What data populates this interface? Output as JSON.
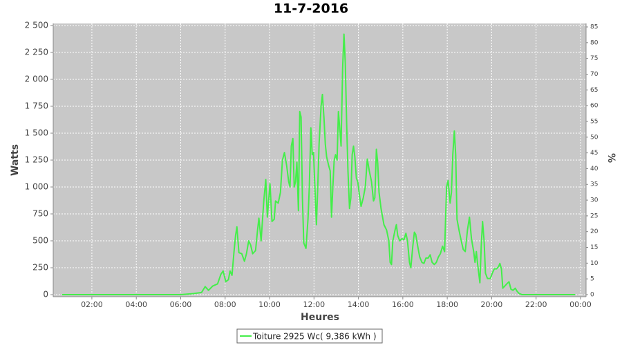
{
  "chart_data": {
    "type": "line",
    "title": "11-7-2016",
    "x_label": "Heures",
    "y_label": "Watts",
    "y2_label": "%",
    "grid": true,
    "legend_position": "bottom",
    "xlim": [
      0.26,
      24.25
    ],
    "xticks": [
      {
        "value": 2,
        "label": "02:00"
      },
      {
        "value": 4,
        "label": "04:00"
      },
      {
        "value": 6,
        "label": "06:00"
      },
      {
        "value": 8,
        "label": "08:00"
      },
      {
        "value": 10,
        "label": "10:00"
      },
      {
        "value": 12,
        "label": "12:00"
      },
      {
        "value": 14,
        "label": "14:00"
      },
      {
        "value": 16,
        "label": "16:00"
      },
      {
        "value": 18,
        "label": "18:00"
      },
      {
        "value": 20,
        "label": "20:00"
      },
      {
        "value": 22,
        "label": "22:00"
      },
      {
        "value": 24,
        "label": "00:00"
      }
    ],
    "ylim": [
      -19,
      2519
    ],
    "yticks": [
      0,
      250,
      500,
      750,
      {
        "value": 1000,
        "label": "1 000"
      },
      {
        "value": 1250,
        "label": "1 250"
      },
      {
        "value": 1500,
        "label": "1 500"
      },
      {
        "value": 1750,
        "label": "1 750"
      },
      {
        "value": 2000,
        "label": "2 000"
      },
      {
        "value": 2250,
        "label": "2 250"
      },
      {
        "value": 2500,
        "label": "2 500"
      }
    ],
    "y2lim": [
      -0.66,
      86.1
    ],
    "y2ticks": [
      0,
      5,
      10,
      15,
      20,
      25,
      30,
      35,
      40,
      45,
      50,
      55,
      60,
      65,
      70,
      75,
      80,
      85
    ],
    "x": [
      0.66,
      6.01,
      6.57,
      6.94,
      7.1,
      7.25,
      7.44,
      7.66,
      7.81,
      7.91,
      8.03,
      8.15,
      8.22,
      8.31,
      8.4,
      8.47,
      8.53,
      8.62,
      8.75,
      8.87,
      8.96,
      9.06,
      9.15,
      9.24,
      9.37,
      9.46,
      9.52,
      9.62,
      9.74,
      9.83,
      9.9,
      10.02,
      10.11,
      10.21,
      10.27,
      10.39,
      10.49,
      10.58,
      10.67,
      10.77,
      10.86,
      10.92,
      10.98,
      11.05,
      11.11,
      11.17,
      11.23,
      11.3,
      11.36,
      11.42,
      11.48,
      11.54,
      11.64,
      11.73,
      11.79,
      11.86,
      11.92,
      11.98,
      12.04,
      12.11,
      12.17,
      12.23,
      12.32,
      12.38,
      12.45,
      12.51,
      12.57,
      12.66,
      12.73,
      12.79,
      12.85,
      12.91,
      12.97,
      13.04,
      13.1,
      13.16,
      13.22,
      13.29,
      13.35,
      13.41,
      13.47,
      13.53,
      13.6,
      13.66,
      13.72,
      13.78,
      13.84,
      13.91,
      13.97,
      14.03,
      14.12,
      14.22,
      14.31,
      14.4,
      14.49,
      14.59,
      14.68,
      14.74,
      14.81,
      14.87,
      14.93,
      15.02,
      15.15,
      15.27,
      15.37,
      15.43,
      15.49,
      15.55,
      15.65,
      15.71,
      15.77,
      15.86,
      15.96,
      16.05,
      16.14,
      16.21,
      16.3,
      16.36,
      16.45,
      16.52,
      16.58,
      16.67,
      16.76,
      16.86,
      16.95,
      17.04,
      17.14,
      17.23,
      17.32,
      17.42,
      17.51,
      17.6,
      17.69,
      17.79,
      17.88,
      17.97,
      18.04,
      18.13,
      18.19,
      18.25,
      18.32,
      18.38,
      18.44,
      18.53,
      18.63,
      18.72,
      18.81,
      18.91,
      19.0,
      19.09,
      19.19,
      19.25,
      19.31,
      19.37,
      19.47,
      19.53,
      19.59,
      19.66,
      19.72,
      19.81,
      19.94,
      20.03,
      20.12,
      20.22,
      20.31,
      20.37,
      20.44,
      20.5,
      20.59,
      20.68,
      20.78,
      20.87,
      20.96,
      21.06,
      21.15,
      21.24,
      21.37,
      23.76
    ],
    "series": [
      {
        "name": "Toiture 2925 Wc( 9,386 kWh )",
        "color": "#44ee4a",
        "values": [
          0,
          0,
          10,
          20,
          75,
          40,
          80,
          100,
          190,
          220,
          120,
          140,
          220,
          180,
          400,
          550,
          630,
          390,
          380,
          310,
          380,
          500,
          460,
          380,
          410,
          600,
          710,
          500,
          870,
          1070,
          720,
          1030,
          680,
          700,
          870,
          850,
          950,
          1250,
          1320,
          1200,
          1050,
          1000,
          1380,
          1450,
          1000,
          1050,
          1230,
          780,
          1700,
          1650,
          900,
          480,
          430,
          700,
          1000,
          1550,
          1300,
          1320,
          1000,
          650,
          1000,
          1400,
          1750,
          1860,
          1640,
          1400,
          1280,
          1200,
          1150,
          720,
          1000,
          1250,
          1300,
          1250,
          1700,
          1550,
          1380,
          2100,
          2420,
          2150,
          1600,
          1150,
          800,
          900,
          1300,
          1380,
          1280,
          1080,
          1050,
          950,
          820,
          900,
          1000,
          1260,
          1150,
          1050,
          870,
          900,
          1350,
          1220,
          950,
          800,
          650,
          600,
          500,
          300,
          280,
          500,
          600,
          650,
          550,
          500,
          520,
          510,
          570,
          500,
          300,
          250,
          450,
          580,
          560,
          450,
          350,
          300,
          290,
          340,
          340,
          370,
          300,
          280,
          300,
          350,
          380,
          450,
          400,
          1000,
          1060,
          850,
          950,
          1300,
          1520,
          1300,
          700,
          600,
          500,
          420,
          400,
          600,
          720,
          520,
          400,
          300,
          400,
          280,
          110,
          450,
          680,
          500,
          200,
          150,
          150,
          200,
          240,
          240,
          260,
          290,
          240,
          60,
          80,
          100,
          120,
          50,
          40,
          60,
          30,
          10,
          0,
          0
        ]
      }
    ]
  }
}
